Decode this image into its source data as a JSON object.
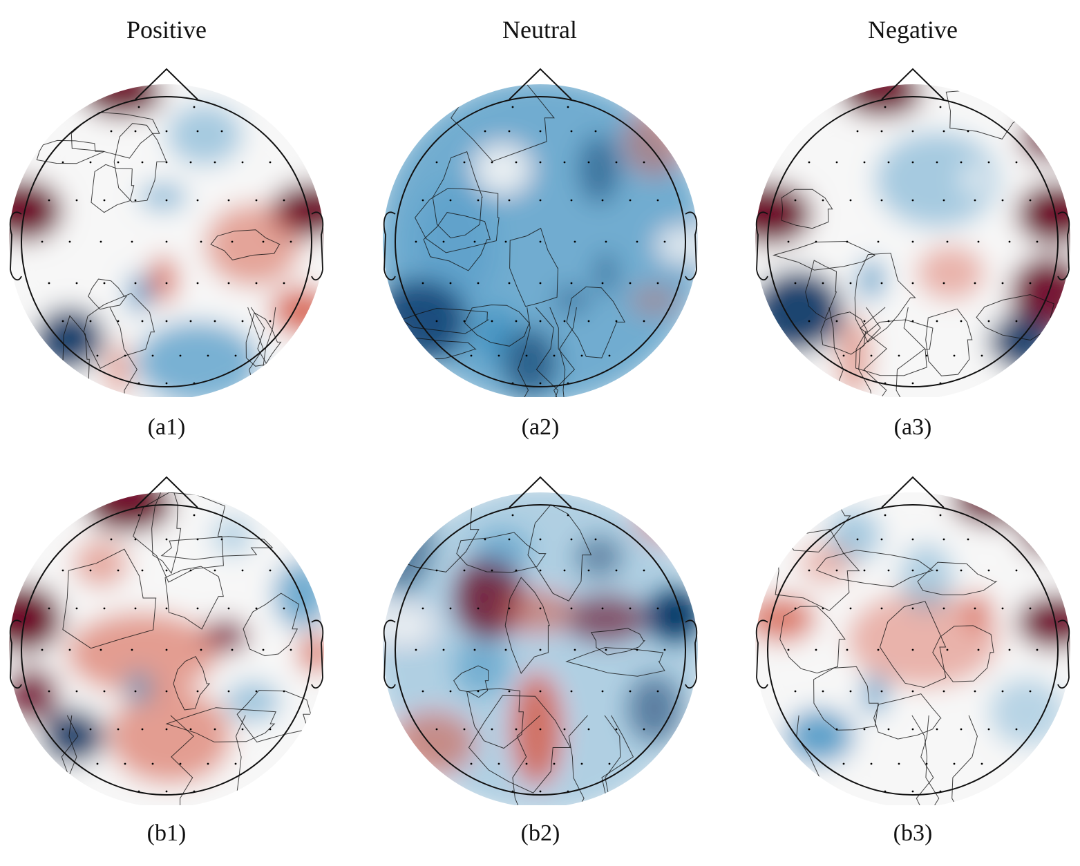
{
  "column_headers": [
    "Positive",
    "Neutral",
    "Negative"
  ],
  "panels": [
    {
      "caption": "(a1)"
    },
    {
      "caption": "(a2)"
    },
    {
      "caption": "(a3)"
    },
    {
      "caption": "(b1)"
    },
    {
      "caption": "(b2)"
    },
    {
      "caption": "(b3)"
    }
  ],
  "colors": {
    "positive_max": "#67001f",
    "positive_mid": "#d6604d",
    "neutral": "#f7f7f7",
    "negative_mid": "#4393c3",
    "negative_max": "#053061",
    "outline": "#111111"
  }
}
